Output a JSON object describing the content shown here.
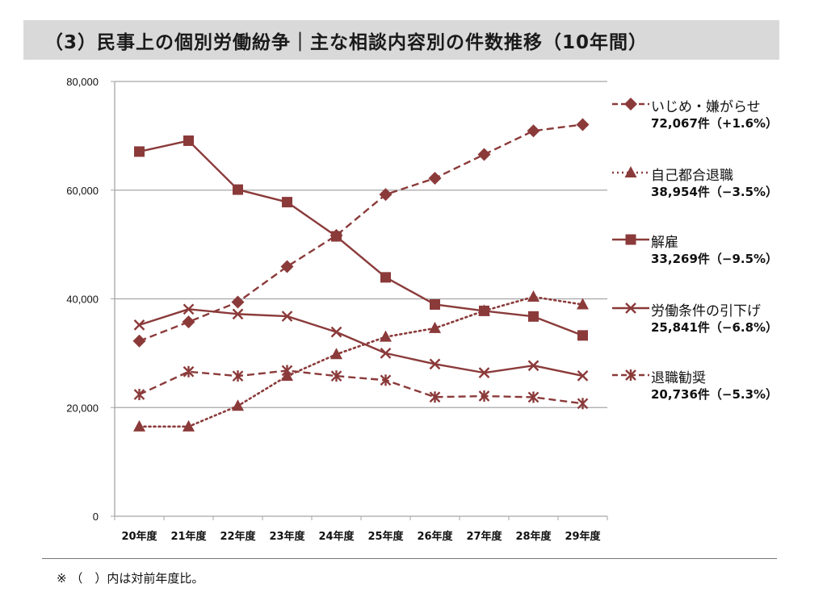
{
  "header": {
    "title": "（3）民事上の個別労働紛争｜主な相談内容別の件数推移（10年間）"
  },
  "footer": {
    "note": "※ （　）内は対前年度比。"
  },
  "colors": {
    "series": "#8b3a3a",
    "grid": "#a6a6a6",
    "title_bg": "#d9d9d9"
  },
  "legend": [
    {
      "name": "いじめ・嫌がらせ",
      "value": "72,067件（+1.6%）",
      "marker": "diamond",
      "line": "dashed"
    },
    {
      "name": "自己都合退職",
      "value": "38,954件（−3.5%）",
      "marker": "triangle",
      "line": "dotted"
    },
    {
      "name": "解雇",
      "value": "33,269件（−9.5%）",
      "marker": "square",
      "line": "solid"
    },
    {
      "name": "労働条件の引下げ",
      "value": "25,841件（−6.8%）",
      "marker": "x",
      "line": "solid"
    },
    {
      "name": "退職勧奨",
      "value": "20,736件（−5.3%）",
      "marker": "asterisk",
      "line": "dashed"
    }
  ],
  "chart_data": {
    "type": "line",
    "title": "（3）民事上の個別労働紛争｜主な相談内容別の件数推移（10年間）",
    "xlabel": "",
    "ylabel": "",
    "categories": [
      "20年度",
      "21年度",
      "22年度",
      "23年度",
      "24年度",
      "25年度",
      "26年度",
      "27年度",
      "28年度",
      "29年度"
    ],
    "ylim": [
      0,
      80000
    ],
    "yticks": [
      0,
      20000,
      40000,
      60000,
      80000
    ],
    "ytick_labels": [
      "0",
      "20,000",
      "40,000",
      "60,000",
      "80,000"
    ],
    "grid": true,
    "legend_position": "right",
    "series": [
      {
        "name": "いじめ・嫌がらせ",
        "marker": "diamond",
        "line": "dashed",
        "values": [
          32242,
          35759,
          39405,
          45939,
          51670,
          59197,
          62191,
          66566,
          70917,
          72067
        ]
      },
      {
        "name": "自己都合退職",
        "marker": "triangle",
        "line": "dotted",
        "values": [
          16500,
          16500,
          20300,
          25800,
          29800,
          33000,
          34600,
          37800,
          40364,
          38954
        ]
      },
      {
        "name": "解雇",
        "marker": "square",
        "line": "solid",
        "values": [
          67100,
          69100,
          60100,
          57800,
          51500,
          43956,
          38966,
          37787,
          36760,
          33269
        ]
      },
      {
        "name": "労働条件の引下げ",
        "marker": "x",
        "line": "solid",
        "values": [
          35200,
          38100,
          37200,
          36800,
          33900,
          30000,
          28000,
          26400,
          27723,
          25841
        ]
      },
      {
        "name": "退職勧奨",
        "marker": "asterisk",
        "line": "dashed",
        "values": [
          22400,
          26600,
          25800,
          26800,
          25800,
          25041,
          21928,
          22110,
          21902,
          20736
        ]
      }
    ]
  }
}
